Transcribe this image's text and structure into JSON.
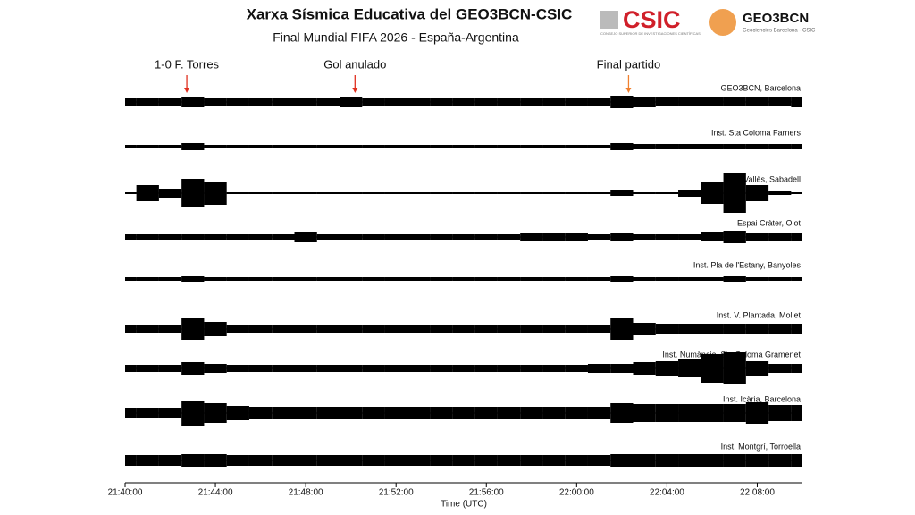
{
  "chart_data": {
    "type": "seismogram",
    "title": "Xarxa Sísmica Educativa del GEO3BCN-CSIC",
    "subtitle": "Final Mundial FIFA 2026 - España-Argentina",
    "x_label": "Time (UTC)",
    "logos": {
      "csic": "CSIC",
      "csic_caption": "CONSEJO SUPERIOR DE INVESTIGACIONES CIENTÍFICAS",
      "geo": "GEO3BCN",
      "geo_caption": "Geociencies Barcelona - CSIC"
    },
    "x": [
      "21:40:00",
      "21:41:00",
      "21:42:00",
      "21:43:00",
      "21:44:00",
      "21:45:00",
      "21:46:00",
      "21:47:00",
      "21:48:00",
      "21:49:00",
      "21:50:00",
      "21:51:00",
      "21:52:00",
      "21:53:00",
      "21:54:00",
      "21:55:00",
      "21:56:00",
      "21:57:00",
      "21:58:00",
      "21:59:00",
      "22:00:00",
      "22:01:00",
      "22:02:00",
      "22:03:00",
      "22:04:00",
      "22:05:00",
      "22:06:00",
      "22:07:00",
      "22:08:00",
      "22:09:00",
      "22:10:00"
    ],
    "xlim": [
      "21:40:00",
      "22:10:00"
    ],
    "xticks": [
      "21:40:00",
      "21:44:00",
      "21:48:00",
      "21:52:00",
      "21:56:00",
      "22:00:00",
      "22:04:00",
      "22:08:00"
    ],
    "annotations": [
      {
        "text": "1-0 F. Torres",
        "x": "21:42:44",
        "color": "#e03020"
      },
      {
        "text": "Gol anulado",
        "x": "21:50:11",
        "color": "#e03020"
      },
      {
        "text": "Final partido",
        "x": "22:02:18",
        "color": "#f08030"
      }
    ],
    "series": [
      {
        "name": "GEO3BCN, Barcelona",
        "color": "#000000",
        "values": [
          4,
          4,
          4,
          6,
          4,
          4,
          4,
          4,
          4,
          4,
          6,
          4,
          4,
          4,
          4,
          4,
          4,
          4,
          4,
          4,
          4,
          4,
          7,
          6,
          5,
          5,
          5,
          5,
          5,
          5,
          6
        ]
      },
      {
        "name": "Inst. Sta Coloma Farners",
        "color": "#000000",
        "values": [
          2,
          2,
          2,
          4,
          2,
          2,
          2,
          2,
          2,
          2,
          2,
          2,
          2,
          2,
          2,
          2,
          2,
          2,
          2,
          2,
          2,
          2,
          4,
          3,
          3,
          3,
          3,
          3,
          3,
          3,
          3
        ]
      },
      {
        "name": "Inst. Vallès, Sabadell",
        "color": "#000000",
        "values": [
          1,
          9,
          5,
          16,
          13,
          1,
          1,
          1,
          1,
          1,
          1,
          1,
          1,
          1,
          1,
          1,
          1,
          1,
          1,
          1,
          1,
          1,
          3,
          1,
          1,
          4,
          12,
          22,
          9,
          2,
          1
        ]
      },
      {
        "name": "Espai Cràter, Olot",
        "color": "#000000",
        "values": [
          3,
          3,
          3,
          3,
          3,
          3,
          3,
          3,
          6,
          3,
          3,
          3,
          3,
          3,
          3,
          3,
          3,
          3,
          4,
          4,
          4,
          3,
          4,
          3,
          3,
          3,
          5,
          7,
          4,
          4,
          4
        ]
      },
      {
        "name": "Inst. Pla de l'Estany, Banyoles",
        "color": "#000000",
        "values": [
          2,
          2,
          2,
          3,
          2,
          2,
          2,
          2,
          2,
          2,
          2,
          2,
          2,
          2,
          2,
          2,
          2,
          2,
          2,
          2,
          2,
          2,
          3,
          2,
          2,
          2,
          2,
          3,
          2,
          2,
          2
        ]
      },
      {
        "name": "Inst. V. Plantada, Mollet",
        "color": "#000000",
        "values": [
          5,
          5,
          5,
          12,
          8,
          5,
          5,
          5,
          5,
          5,
          5,
          5,
          5,
          5,
          5,
          5,
          5,
          5,
          5,
          5,
          5,
          5,
          12,
          7,
          6,
          6,
          6,
          6,
          6,
          6,
          6
        ]
      },
      {
        "name": "Inst. Numància, Sta Coloma Gramenet",
        "color": "#000000",
        "values": [
          4,
          4,
          4,
          7,
          5,
          4,
          4,
          4,
          4,
          4,
          4,
          4,
          4,
          4,
          4,
          4,
          4,
          4,
          4,
          4,
          4,
          5,
          5,
          7,
          8,
          10,
          16,
          18,
          8,
          5,
          5
        ]
      },
      {
        "name": "Inst. Icària, Barcelona",
        "color": "#000000",
        "values": [
          6,
          6,
          6,
          14,
          11,
          8,
          7,
          7,
          7,
          7,
          7,
          7,
          7,
          7,
          7,
          7,
          7,
          7,
          7,
          7,
          7,
          7,
          11,
          10,
          10,
          10,
          10,
          10,
          12,
          9,
          9
        ]
      },
      {
        "name": "Inst. Montgrí, Torroella",
        "color": "#000000",
        "values": [
          6,
          6,
          6,
          7,
          7,
          6,
          6,
          6,
          6,
          6,
          6,
          6,
          6,
          6,
          6,
          6,
          6,
          6,
          6,
          6,
          6,
          6,
          7,
          7,
          7,
          7,
          7,
          7,
          7,
          7,
          7
        ]
      }
    ]
  }
}
